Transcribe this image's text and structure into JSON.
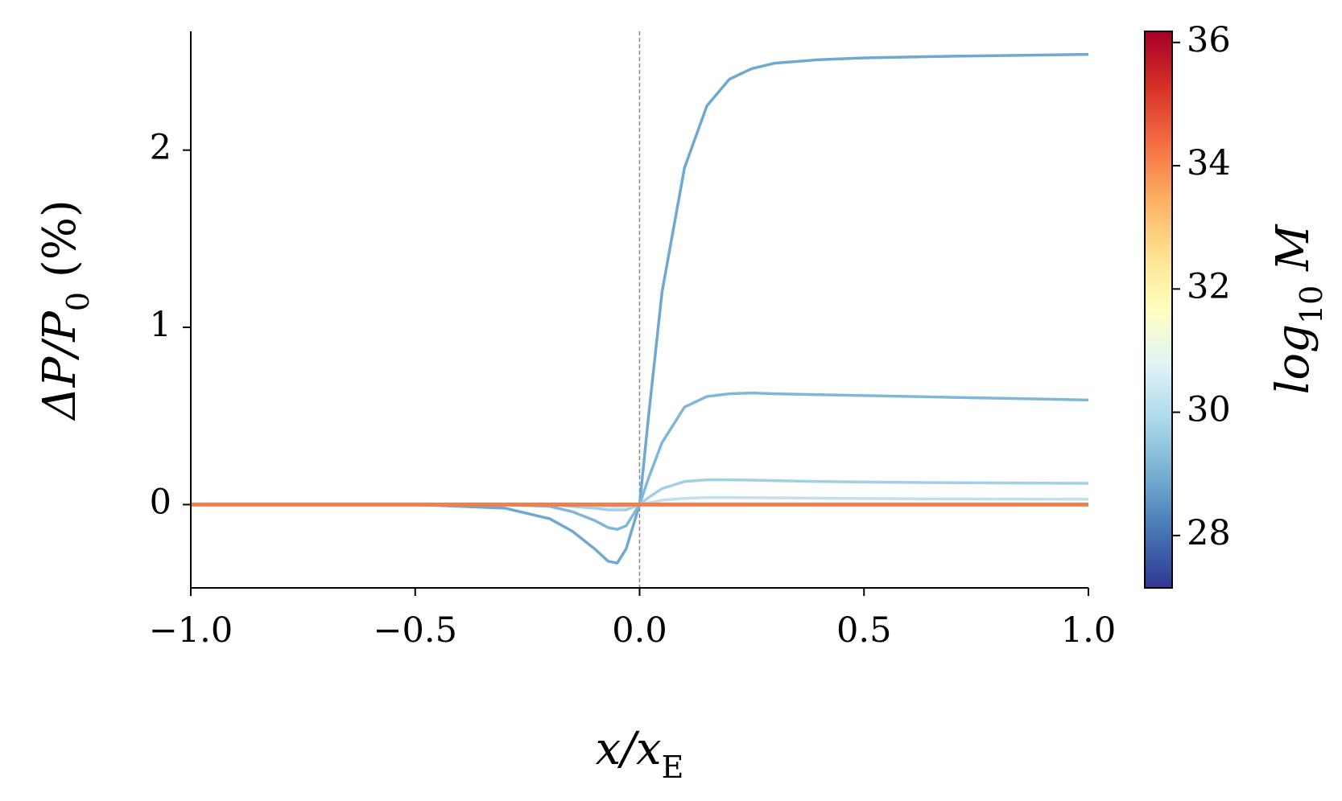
{
  "chart_data": {
    "type": "line",
    "xlabel": {
      "main": "x/x",
      "sub": "E"
    },
    "ylabel": {
      "main": "ΔP/P",
      "sub": "0",
      "tail": " (%)"
    },
    "x": [
      -1,
      -0.5,
      -0.3,
      -0.2,
      -0.15,
      -0.1,
      -0.07,
      -0.05,
      -0.03,
      0,
      0.02,
      0.05,
      0.1,
      0.15,
      0.2,
      0.25,
      0.3,
      0.4,
      0.5,
      0.7,
      1
    ],
    "series": [
      {
        "color": "#6fa8d0",
        "values": [
          0,
          0,
          -0.02,
          -0.08,
          -0.15,
          -0.25,
          -0.32,
          -0.33,
          -0.25,
          0,
          0.5,
          1.2,
          1.9,
          2.25,
          2.4,
          2.46,
          2.49,
          2.51,
          2.52,
          2.53,
          2.54
        ]
      },
      {
        "color": "#80b7d8",
        "values": [
          0,
          0,
          0,
          -0.01,
          -0.04,
          -0.09,
          -0.13,
          -0.14,
          -0.12,
          0,
          0.15,
          0.35,
          0.55,
          0.61,
          0.625,
          0.63,
          0.625,
          0.62,
          0.615,
          0.605,
          0.59
        ]
      },
      {
        "color": "#a3cfe4",
        "values": [
          0,
          0,
          0,
          0,
          -0.01,
          -0.02,
          -0.03,
          -0.03,
          -0.03,
          0,
          0.04,
          0.09,
          0.13,
          0.14,
          0.14,
          0.138,
          0.135,
          0.13,
          0.127,
          0.123,
          0.12
        ]
      },
      {
        "color": "#bfe0ed",
        "values": [
          0,
          0,
          0,
          0,
          0,
          -0.005,
          -0.01,
          -0.01,
          -0.01,
          0,
          0.01,
          0.025,
          0.035,
          0.04,
          0.04,
          0.039,
          0.038,
          0.036,
          0.034,
          0.032,
          0.03
        ]
      },
      {
        "color": "#f07f4f",
        "values": [
          0,
          0,
          0,
          0,
          0,
          0,
          0,
          0,
          0,
          0,
          0,
          0,
          0,
          0,
          0,
          0,
          0,
          0,
          0,
          0,
          0
        ]
      }
    ],
    "vline": 0,
    "xlim": [
      -1,
      1
    ],
    "xticks": [
      {
        "value": -1,
        "label": "−1.0"
      },
      {
        "value": -0.5,
        "label": "−0.5"
      },
      {
        "value": 0,
        "label": "0.0"
      },
      0.5,
      {
        "value": 1,
        "label": "1.0"
      }
    ],
    "ylim": [
      -0.47,
      2.67
    ],
    "yticks": [
      0,
      1,
      2
    ],
    "colorbar": {
      "label": {
        "main": "log",
        "sub": "10",
        "tail": " M"
      },
      "lim": [
        27.15,
        36.18
      ],
      "ticks": [
        28,
        30,
        32,
        34,
        36
      ],
      "colormap": [
        "#313695",
        "#4575b4",
        "#74add1",
        "#abd9e9",
        "#e0f3f8",
        "#ffffbf",
        "#fee090",
        "#fdae61",
        "#f46d43",
        "#d73027",
        "#a50026"
      ]
    }
  }
}
